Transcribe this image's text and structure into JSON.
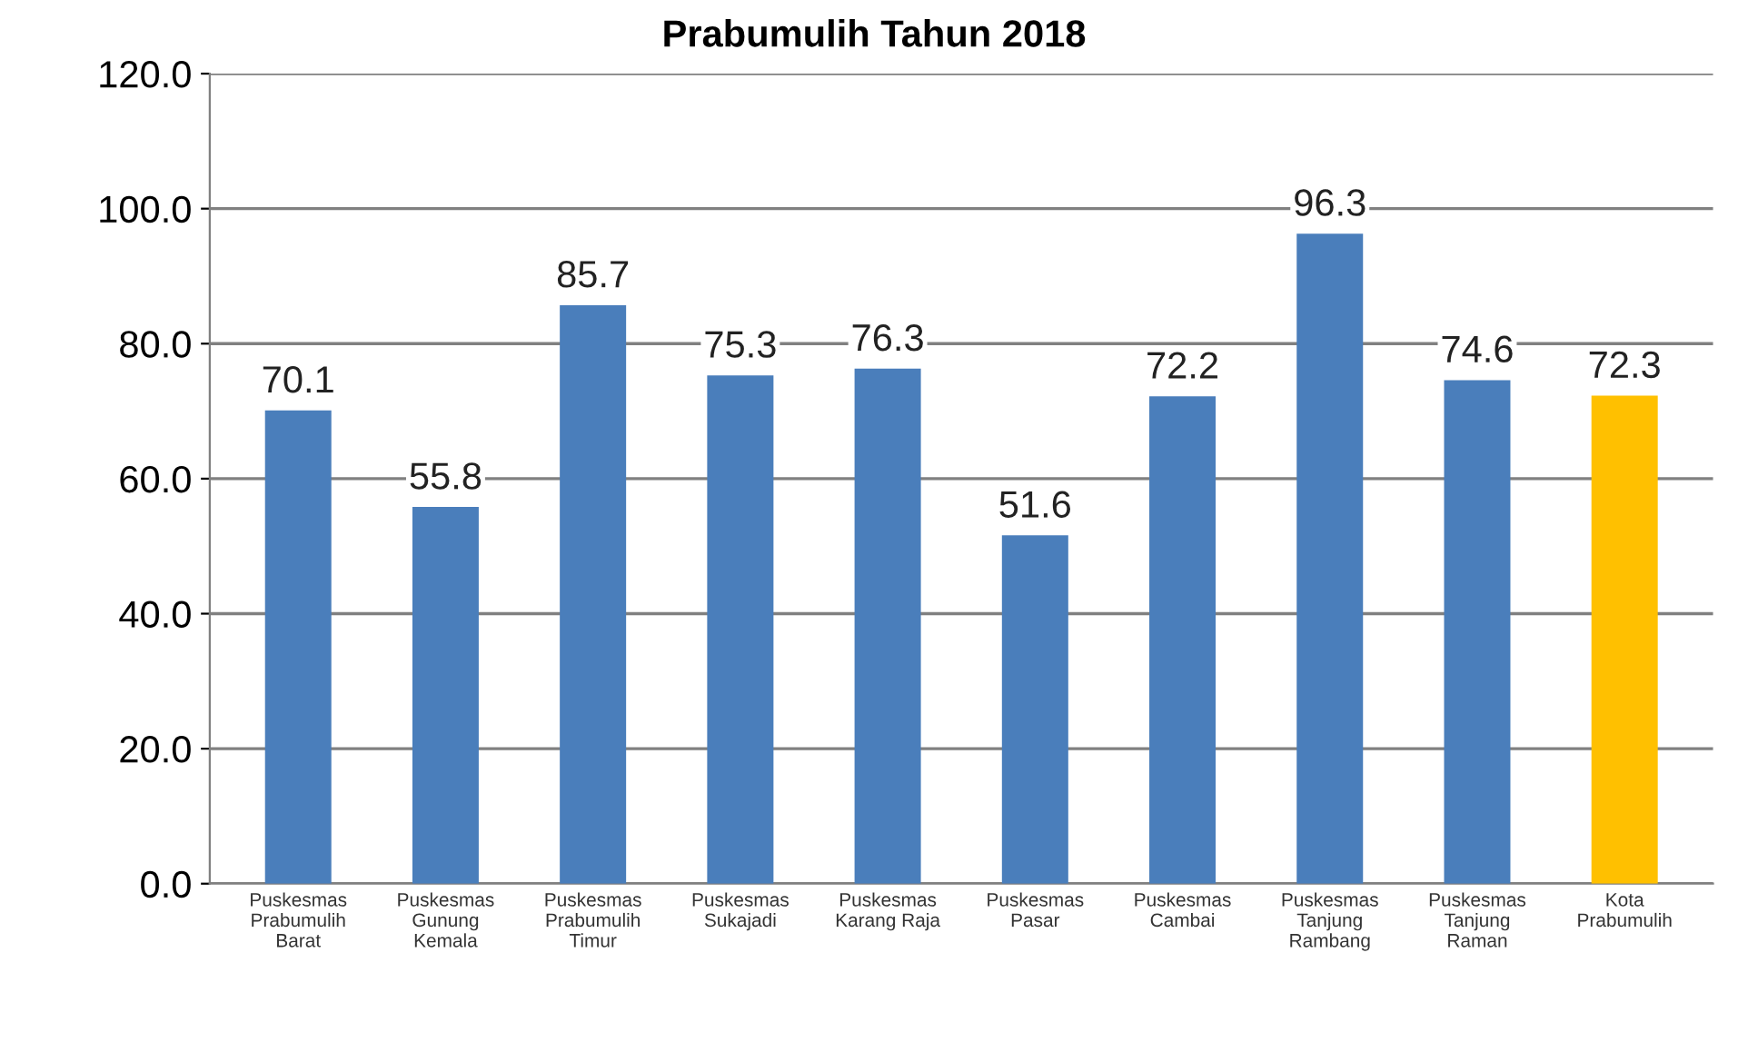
{
  "chart_data": {
    "type": "bar",
    "title": "Prabumulih Tahun 2018",
    "categories": [
      "Puskesmas\nPrabumulih\nBarat",
      "Puskesmas\nGunung\nKemala",
      "Puskesmas\nPrabumulih\nTimur",
      "Puskesmas\nSukajadi",
      "Puskesmas\nKarang Raja",
      "Puskesmas\nPasar",
      "Puskesmas\nCambai",
      "Puskesmas\nTanjung\nRambang",
      "Puskesmas\nTanjung\nRaman",
      "Kota\nPrabumulih"
    ],
    "values": [
      70.1,
      55.8,
      85.7,
      75.3,
      76.3,
      51.6,
      72.2,
      96.3,
      74.6,
      72.3
    ],
    "value_labels": [
      "70.1",
      "55.8",
      "85.7",
      "75.3",
      "76.3",
      "51.6",
      "72.2",
      "96.3",
      "74.6",
      "72.3"
    ],
    "colors": [
      "#4a7ebb",
      "#4a7ebb",
      "#4a7ebb",
      "#4a7ebb",
      "#4a7ebb",
      "#4a7ebb",
      "#4a7ebb",
      "#4a7ebb",
      "#4a7ebb",
      "#ffc000"
    ],
    "ylim": [
      0,
      120
    ],
    "yticks": [
      {
        "value": 0,
        "label": "0.0"
      },
      {
        "value": 20,
        "label": "20.0"
      },
      {
        "value": 40,
        "label": "40.0"
      },
      {
        "value": 60,
        "label": "60.0"
      },
      {
        "value": 80,
        "label": "80.0"
      },
      {
        "value": 100,
        "label": "100.0"
      },
      {
        "value": 120,
        "label": "120.0"
      }
    ],
    "grid": "y",
    "legend": false
  }
}
